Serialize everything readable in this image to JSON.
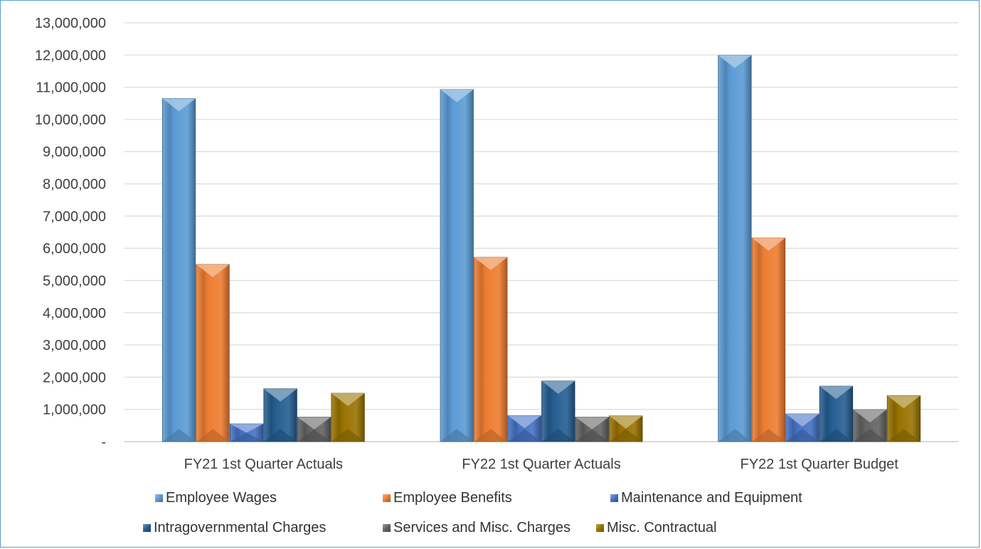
{
  "chart_data": {
    "type": "bar",
    "title": "",
    "xlabel": "",
    "ylabel": "",
    "categories": [
      "FY21 1st Quarter Actuals",
      "FY22 1st Quarter Actuals",
      "FY22 1st Quarter Budget"
    ],
    "ylim": [
      0,
      13000000
    ],
    "y_ticks": [
      0,
      1000000,
      2000000,
      3000000,
      4000000,
      5000000,
      6000000,
      7000000,
      8000000,
      9000000,
      10000000,
      11000000,
      12000000,
      13000000
    ],
    "y_tick_labels": [
      "-",
      "1,000,000",
      "2,000,000",
      "3,000,000",
      "4,000,000",
      "5,000,000",
      "6,000,000",
      "7,000,000",
      "8,000,000",
      "9,000,000",
      "10,000,000",
      "11,000,000",
      "12,000,000",
      "13,000,000"
    ],
    "grid": true,
    "legend_position": "bottom",
    "series": [
      {
        "name": "Employee Wages",
        "color": "#5b9bd5",
        "values": [
          10650000,
          10930000,
          11990000
        ]
      },
      {
        "name": "Employee Benefits",
        "color": "#ed7d31",
        "values": [
          5500000,
          5720000,
          6320000
        ]
      },
      {
        "name": "Maintenance and Equipment",
        "color": "#4472c4",
        "values": [
          550000,
          810000,
          860000
        ]
      },
      {
        "name": "Intragovernmental Charges",
        "color": "#255e91",
        "values": [
          1640000,
          1880000,
          1720000
        ]
      },
      {
        "name": "Services and Misc. Charges",
        "color": "#636363",
        "values": [
          760000,
          760000,
          990000
        ]
      },
      {
        "name": "Misc. Contractual",
        "color": "#997300",
        "values": [
          1500000,
          800000,
          1430000
        ]
      }
    ]
  }
}
